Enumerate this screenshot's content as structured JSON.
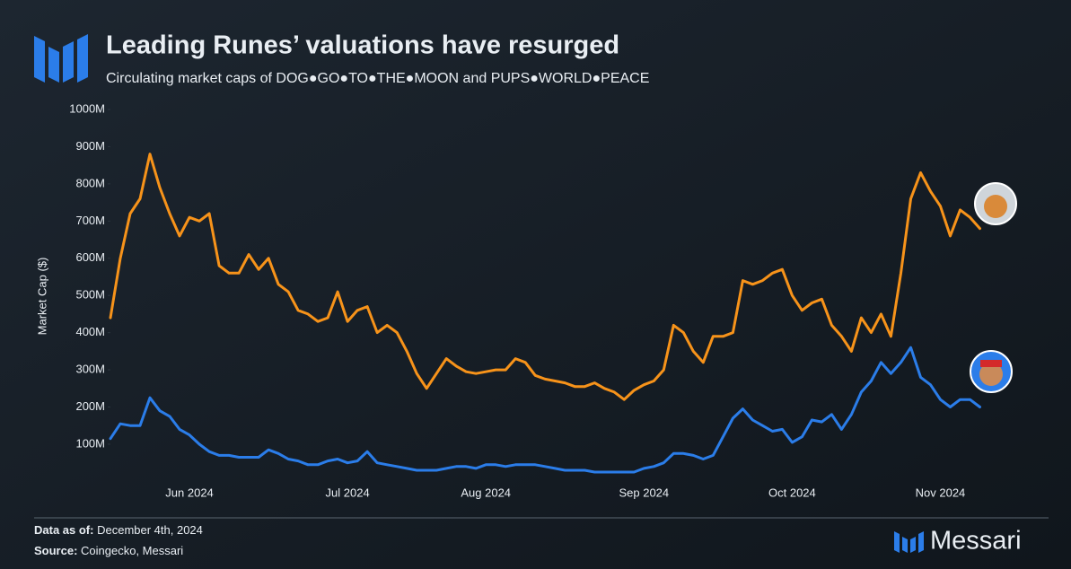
{
  "chart_data": {
    "type": "line",
    "title": "Leading Runes’ valuations have resurged",
    "subtitle": "Circulating market caps of DOG●GO●TO●THE●MOON and PUPS●WORLD●PEACE",
    "y_label": "Market Cap ($)",
    "categories": [
      null,
      null,
      null,
      null,
      null,
      null,
      null,
      null,
      "Jun 2024",
      null,
      null,
      null,
      null,
      null,
      null,
      null,
      null,
      null,
      null,
      null,
      null,
      null,
      null,
      null,
      "Jul 2024",
      null,
      null,
      null,
      null,
      null,
      null,
      null,
      null,
      null,
      null,
      null,
      null,
      null,
      "Aug 2024",
      null,
      null,
      null,
      null,
      null,
      null,
      null,
      null,
      null,
      null,
      null,
      null,
      null,
      null,
      null,
      "Sep 2024",
      null,
      null,
      null,
      null,
      null,
      null,
      null,
      null,
      null,
      null,
      null,
      null,
      null,
      null,
      "Oct 2024",
      null,
      null,
      null,
      null,
      null,
      null,
      null,
      null,
      null,
      null,
      null,
      null,
      null,
      null,
      "Nov 2024",
      null,
      null,
      null,
      null
    ],
    "series": [
      {
        "color": "#f7931a",
        "values": [
          440,
          600,
          720,
          760,
          880,
          790,
          720,
          660,
          710,
          700,
          720,
          580,
          560,
          560,
          610,
          570,
          600,
          530,
          510,
          460,
          450,
          430,
          440,
          510,
          430,
          460,
          470,
          400,
          420,
          400,
          350,
          290,
          250,
          290,
          330,
          310,
          295,
          290,
          295,
          300,
          300,
          330,
          320,
          285,
          275,
          270,
          265,
          255,
          255,
          265,
          250,
          240,
          220,
          245,
          260,
          270,
          300,
          420,
          400,
          350,
          320,
          390,
          390,
          400,
          540,
          530,
          540,
          560,
          570,
          500,
          460,
          480,
          490,
          420,
          390,
          350,
          440,
          400,
          450,
          390,
          560,
          760,
          830,
          780,
          740,
          660,
          730,
          710,
          680
        ]
      },
      {
        "color": "#2b7de9",
        "values": [
          115,
          155,
          150,
          150,
          225,
          190,
          175,
          140,
          125,
          100,
          80,
          70,
          70,
          65,
          65,
          65,
          85,
          75,
          60,
          55,
          45,
          45,
          55,
          60,
          50,
          55,
          80,
          50,
          45,
          40,
          35,
          30,
          30,
          30,
          35,
          40,
          40,
          35,
          45,
          45,
          40,
          45,
          45,
          45,
          40,
          35,
          30,
          30,
          30,
          25,
          25,
          25,
          25,
          25,
          35,
          40,
          50,
          75,
          75,
          70,
          60,
          70,
          120,
          170,
          195,
          165,
          150,
          135,
          140,
          105,
          120,
          165,
          160,
          180,
          140,
          180,
          240,
          270,
          320,
          290,
          320,
          360,
          280,
          260,
          220,
          200,
          220,
          220,
          200
        ]
      }
    ],
    "ylim": [
      0,
      1000
    ],
    "yticks": [
      {
        "value": 100,
        "label": "100M"
      },
      {
        "value": 200,
        "label": "200M"
      },
      {
        "value": 300,
        "label": "300M"
      },
      {
        "value": 400,
        "label": "400M"
      },
      {
        "value": 500,
        "label": "500M"
      },
      {
        "value": 600,
        "label": "600M"
      },
      {
        "value": 700,
        "label": "700M"
      },
      {
        "value": 800,
        "label": "800M"
      },
      {
        "value": 900,
        "label": "900M"
      },
      {
        "value": 1000,
        "label": "1000M"
      }
    ],
    "grid": false,
    "footer": {
      "data_as_of_label": "Data as of:",
      "data_as_of": "December 4th, 2024",
      "source_label": "Source:",
      "source": "Coingecko, Messari",
      "brand": "Messari"
    }
  }
}
